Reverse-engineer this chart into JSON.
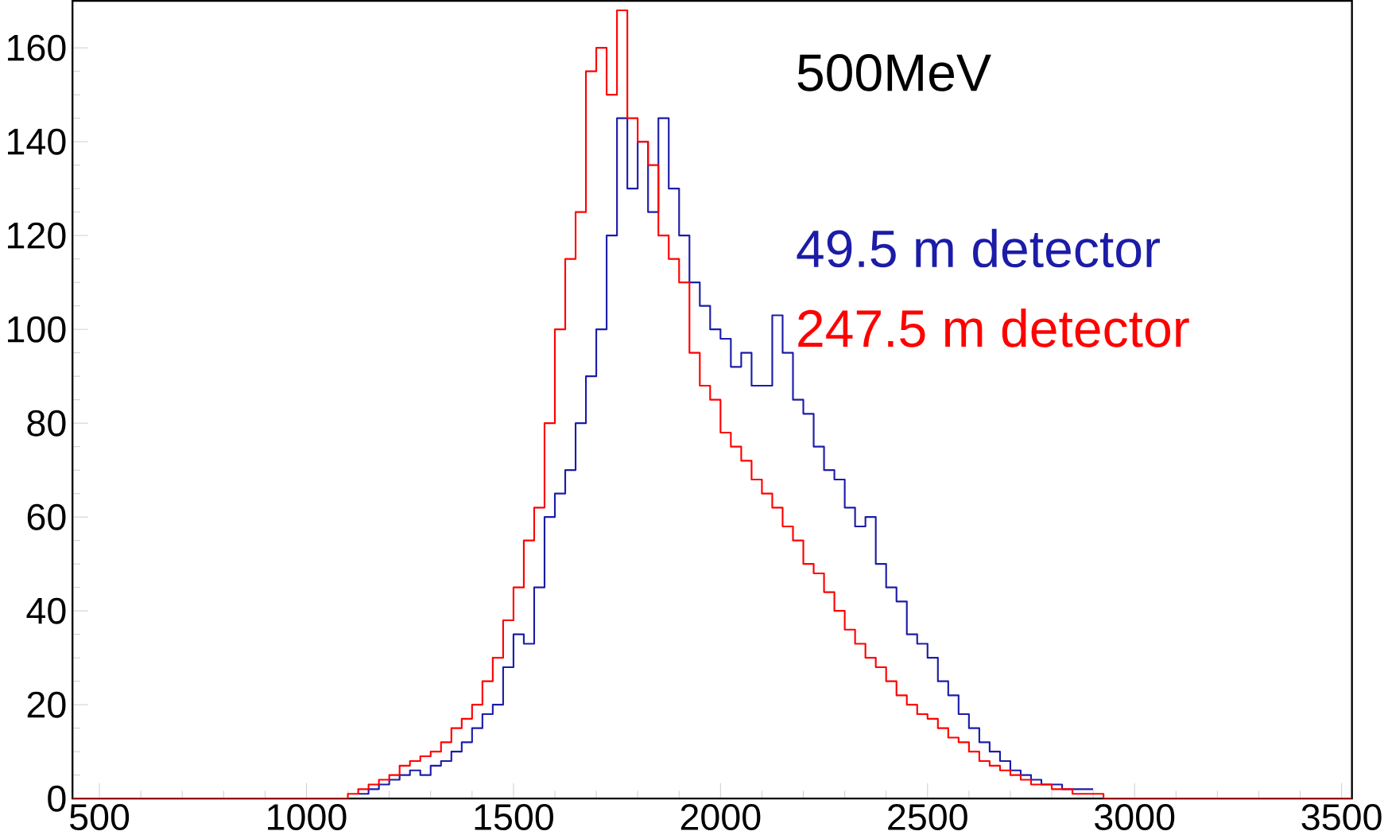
{
  "chart_data": {
    "type": "step",
    "annotations": [
      "500MeV"
    ],
    "xlim": [
      435,
      3525
    ],
    "ylim": [
      0,
      170
    ],
    "xticks": [
      500,
      1000,
      1500,
      2000,
      2500,
      3000,
      3500
    ],
    "yticks": [
      0,
      20,
      40,
      60,
      80,
      100,
      120,
      140,
      160
    ],
    "grid": false,
    "legend": false,
    "line_style": "solid",
    "marker": "none",
    "series": [
      {
        "name": "49.5 m detector",
        "color": "#1c1ca8",
        "x": [
          1125,
          1150,
          1175,
          1200,
          1225,
          1250,
          1275,
          1300,
          1325,
          1350,
          1375,
          1400,
          1425,
          1450,
          1475,
          1500,
          1525,
          1550,
          1575,
          1600,
          1625,
          1650,
          1675,
          1700,
          1725,
          1750,
          1775,
          1800,
          1825,
          1850,
          1875,
          1900,
          1925,
          1950,
          1975,
          2000,
          2025,
          2050,
          2075,
          2100,
          2125,
          2150,
          2175,
          2200,
          2225,
          2250,
          2275,
          2300,
          2325,
          2350,
          2375,
          2400,
          2425,
          2450,
          2475,
          2500,
          2525,
          2550,
          2575,
          2600,
          2625,
          2650,
          2675,
          2700,
          2725,
          2750,
          2775,
          2800,
          2825,
          2850,
          2875,
          2900
        ],
        "values": [
          1,
          2,
          3,
          4,
          5,
          6,
          5,
          7,
          8,
          10,
          12,
          15,
          18,
          20,
          28,
          35,
          33,
          45,
          60,
          65,
          70,
          80,
          90,
          100,
          120,
          145,
          130,
          140,
          125,
          145,
          130,
          120,
          110,
          105,
          100,
          98,
          92,
          95,
          88,
          88,
          103,
          95,
          85,
          82,
          75,
          70,
          68,
          62,
          58,
          60,
          50,
          45,
          42,
          35,
          33,
          30,
          25,
          22,
          18,
          15,
          12,
          10,
          8,
          6,
          5,
          4,
          3,
          3,
          2,
          2,
          2,
          2
        ]
      },
      {
        "name": "247.5 m detector",
        "color": "#ff0000",
        "x": [
          435,
          1100,
          1125,
          1150,
          1175,
          1200,
          1225,
          1250,
          1275,
          1300,
          1325,
          1350,
          1375,
          1400,
          1425,
          1450,
          1475,
          1500,
          1525,
          1550,
          1575,
          1600,
          1625,
          1650,
          1675,
          1700,
          1725,
          1750,
          1775,
          1800,
          1825,
          1850,
          1875,
          1900,
          1925,
          1950,
          1975,
          2000,
          2025,
          2050,
          2075,
          2100,
          2125,
          2150,
          2175,
          2200,
          2225,
          2250,
          2275,
          2300,
          2325,
          2350,
          2375,
          2400,
          2425,
          2450,
          2475,
          2500,
          2525,
          2550,
          2575,
          2600,
          2625,
          2650,
          2675,
          2700,
          2725,
          2750,
          2775,
          2800,
          2825,
          2850,
          2875,
          2900,
          2925,
          3525
        ],
        "values": [
          0,
          1,
          2,
          3,
          4,
          5,
          7,
          8,
          9,
          10,
          12,
          15,
          17,
          20,
          25,
          30,
          38,
          45,
          55,
          62,
          80,
          100,
          115,
          125,
          155,
          160,
          150,
          168,
          145,
          140,
          135,
          120,
          115,
          110,
          95,
          88,
          85,
          78,
          75,
          72,
          68,
          65,
          62,
          58,
          55,
          50,
          48,
          44,
          40,
          36,
          33,
          30,
          28,
          25,
          22,
          20,
          18,
          17,
          15,
          13,
          12,
          10,
          8,
          7,
          6,
          5,
          4,
          3,
          3,
          2,
          2,
          1,
          1,
          1,
          0,
          0
        ]
      }
    ]
  }
}
